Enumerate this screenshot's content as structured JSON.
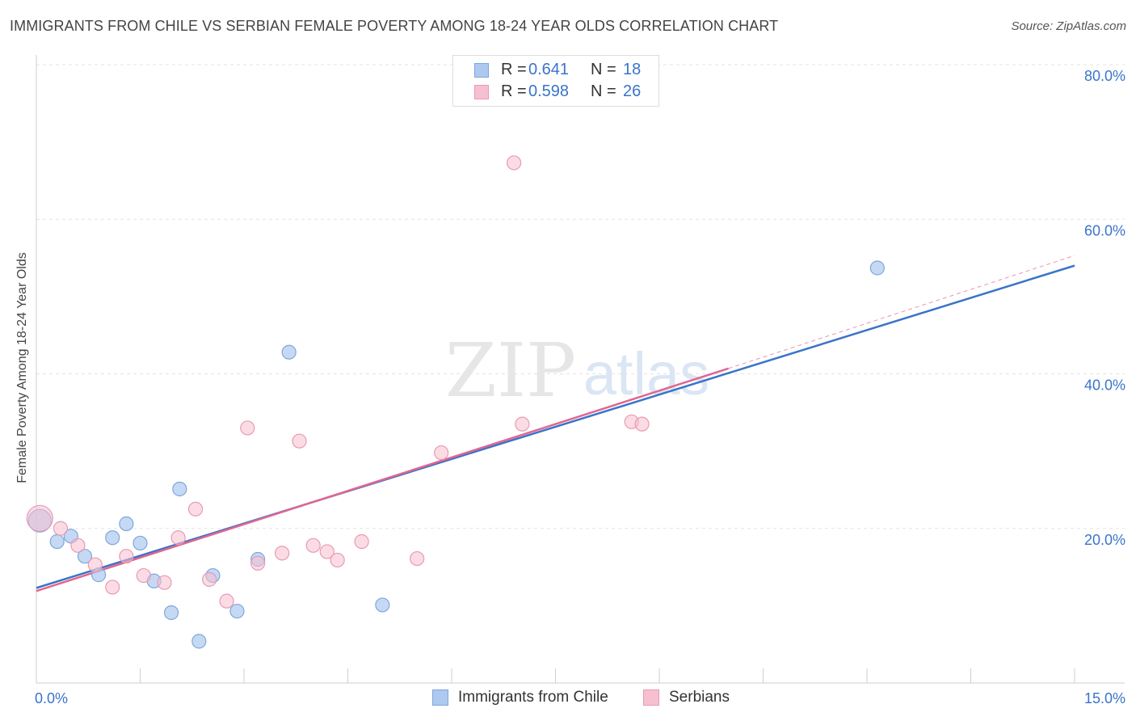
{
  "title": "IMMIGRANTS FROM CHILE VS SERBIAN FEMALE POVERTY AMONG 18-24 YEAR OLDS CORRELATION CHART",
  "source": "Source: ZipAtlas.com",
  "watermark": {
    "zip": "ZIP",
    "atlas": "atlas"
  },
  "legend": {
    "r_label": "R =",
    "n_label": "N =",
    "rows": [
      {
        "series": "Immigrants from Chile",
        "r": "0.641",
        "n": "18"
      },
      {
        "series": "Serbians",
        "r": "0.598",
        "n": "26"
      }
    ]
  },
  "colors": {
    "chile_fill": "#aec9ef",
    "chile_stroke": "#7ea6dc",
    "chile_line": "#3a74c9",
    "serbian_fill": "#f7c0d0",
    "serbian_stroke": "#e89ab2",
    "serbian_line": "#e06690",
    "axis_text": "#3a74c9",
    "grid": "#e3e3e3"
  },
  "chart_data": {
    "type": "scatter",
    "title": "IMMIGRANTS FROM CHILE VS SERBIAN FEMALE POVERTY AMONG 18-24 YEAR OLDS CORRELATION CHART",
    "xlabel": "",
    "ylabel": "Female Poverty Among 18-24 Year Olds",
    "xlim": [
      0,
      15
    ],
    "ylim": [
      0,
      80
    ],
    "x_tick_labels": [
      {
        "value": 0,
        "label": "0.0%"
      },
      {
        "value": 15,
        "label": "15.0%"
      }
    ],
    "y_tick_labels": [
      {
        "value": 20,
        "label": "20.0%"
      },
      {
        "value": 40,
        "label": "40.0%"
      },
      {
        "value": 60,
        "label": "60.0%"
      },
      {
        "value": 80,
        "label": "80.0%"
      }
    ],
    "series": [
      {
        "name": "Immigrants from Chile",
        "r": 0.641,
        "n": 18,
        "points": [
          {
            "x": 0.05,
            "y": 21.0,
            "big": true
          },
          {
            "x": 0.3,
            "y": 18.3
          },
          {
            "x": 0.5,
            "y": 19.0
          },
          {
            "x": 0.7,
            "y": 16.4
          },
          {
            "x": 0.9,
            "y": 14.0
          },
          {
            "x": 1.1,
            "y": 18.8
          },
          {
            "x": 1.3,
            "y": 20.6
          },
          {
            "x": 1.5,
            "y": 18.1
          },
          {
            "x": 1.7,
            "y": 13.2
          },
          {
            "x": 1.95,
            "y": 9.1
          },
          {
            "x": 2.07,
            "y": 25.1
          },
          {
            "x": 2.35,
            "y": 5.4
          },
          {
            "x": 2.55,
            "y": 13.9
          },
          {
            "x": 2.9,
            "y": 9.3
          },
          {
            "x": 3.2,
            "y": 16.0
          },
          {
            "x": 3.65,
            "y": 42.8
          },
          {
            "x": 5.0,
            "y": 10.1
          },
          {
            "x": 12.15,
            "y": 53.7
          }
        ],
        "trend": {
          "x": [
            0,
            15
          ],
          "y": [
            12.3,
            54.0
          ]
        }
      },
      {
        "name": "Serbians",
        "r": 0.598,
        "n": 26,
        "points": [
          {
            "x": 0.05,
            "y": 21.3,
            "big": true
          },
          {
            "x": 0.35,
            "y": 20.0
          },
          {
            "x": 0.6,
            "y": 17.8
          },
          {
            "x": 0.85,
            "y": 15.3
          },
          {
            "x": 1.1,
            "y": 12.4
          },
          {
            "x": 1.3,
            "y": 16.4
          },
          {
            "x": 1.55,
            "y": 13.9
          },
          {
            "x": 1.85,
            "y": 13.0
          },
          {
            "x": 2.05,
            "y": 18.8
          },
          {
            "x": 2.3,
            "y": 22.5
          },
          {
            "x": 2.5,
            "y": 13.4
          },
          {
            "x": 2.75,
            "y": 10.6
          },
          {
            "x": 3.05,
            "y": 33.0
          },
          {
            "x": 3.2,
            "y": 15.5
          },
          {
            "x": 3.55,
            "y": 16.8
          },
          {
            "x": 3.8,
            "y": 31.3
          },
          {
            "x": 4.0,
            "y": 17.8
          },
          {
            "x": 4.2,
            "y": 17.0
          },
          {
            "x": 4.35,
            "y": 15.9
          },
          {
            "x": 4.7,
            "y": 18.3
          },
          {
            "x": 5.5,
            "y": 16.1
          },
          {
            "x": 5.85,
            "y": 29.8
          },
          {
            "x": 6.9,
            "y": 67.3
          },
          {
            "x": 7.02,
            "y": 33.5
          },
          {
            "x": 8.6,
            "y": 33.8
          },
          {
            "x": 8.75,
            "y": 33.5
          }
        ],
        "trend": {
          "x": [
            0,
            10.0
          ],
          "y": [
            11.9,
            40.7
          ]
        },
        "trend_extension": {
          "x": [
            10.0,
            15
          ],
          "y": [
            40.7,
            55.3
          ]
        }
      }
    ]
  }
}
